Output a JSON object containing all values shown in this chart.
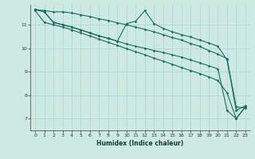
{
  "xlabel": "Humidex (Indice chaleur)",
  "ylabel": "",
  "background_color": "#cce9e4",
  "grid_color": "#b0d8d2",
  "line_color": "#1a6b5e",
  "xlim": [
    -0.5,
    23.5
  ],
  "ylim": [
    6.5,
    11.85
  ],
  "xticks": [
    0,
    1,
    2,
    3,
    4,
    5,
    6,
    7,
    8,
    9,
    10,
    11,
    12,
    13,
    14,
    15,
    16,
    17,
    18,
    19,
    20,
    21,
    22,
    23
  ],
  "yticks": [
    7,
    8,
    9,
    10,
    11
  ],
  "series": [
    {
      "x": [
        0,
        1,
        2,
        3,
        4,
        5,
        6,
        7,
        8,
        9,
        10,
        11,
        12,
        13,
        14,
        15,
        16,
        17,
        18,
        19,
        20,
        21,
        22,
        23
      ],
      "y": [
        11.65,
        11.6,
        11.55,
        11.55,
        11.5,
        11.42,
        11.35,
        11.25,
        11.18,
        11.08,
        11.0,
        10.9,
        10.8,
        10.7,
        10.58,
        10.45,
        10.35,
        10.2,
        10.08,
        9.9,
        9.75,
        9.55,
        7.5,
        7.45
      ]
    },
    {
      "x": [
        0,
        1,
        2,
        3,
        4,
        5,
        6,
        7,
        8,
        9,
        10,
        11,
        12,
        13,
        14,
        15,
        16,
        17,
        18,
        19,
        20,
        21,
        22,
        23
      ],
      "y": [
        11.65,
        11.55,
        11.1,
        11.0,
        10.9,
        10.78,
        10.65,
        10.52,
        10.42,
        10.3,
        11.05,
        11.15,
        11.6,
        11.05,
        10.85,
        10.7,
        10.58,
        10.48,
        10.35,
        10.22,
        10.08,
        9.5,
        7.35,
        7.55
      ]
    },
    {
      "x": [
        0,
        1,
        2,
        3,
        4,
        5,
        6,
        7,
        8,
        9,
        10,
        11,
        12,
        13,
        14,
        15,
        16,
        17,
        18,
        19,
        20,
        21,
        22,
        23
      ],
      "y": [
        11.65,
        11.55,
        11.1,
        11.0,
        10.9,
        10.78,
        10.65,
        10.52,
        10.42,
        10.3,
        10.18,
        10.08,
        10.0,
        9.9,
        9.82,
        9.72,
        9.62,
        9.5,
        9.38,
        9.25,
        9.12,
        7.35,
        7.0,
        7.5
      ]
    },
    {
      "x": [
        0,
        1,
        2,
        3,
        4,
        5,
        6,
        7,
        8,
        9,
        10,
        11,
        12,
        13,
        14,
        15,
        16,
        17,
        18,
        19,
        20,
        21,
        22,
        23
      ],
      "y": [
        11.6,
        11.1,
        11.0,
        10.9,
        10.78,
        10.65,
        10.52,
        10.38,
        10.25,
        10.12,
        9.98,
        9.85,
        9.72,
        9.58,
        9.45,
        9.32,
        9.18,
        9.05,
        8.92,
        8.78,
        8.62,
        8.1,
        7.0,
        7.5
      ]
    }
  ]
}
